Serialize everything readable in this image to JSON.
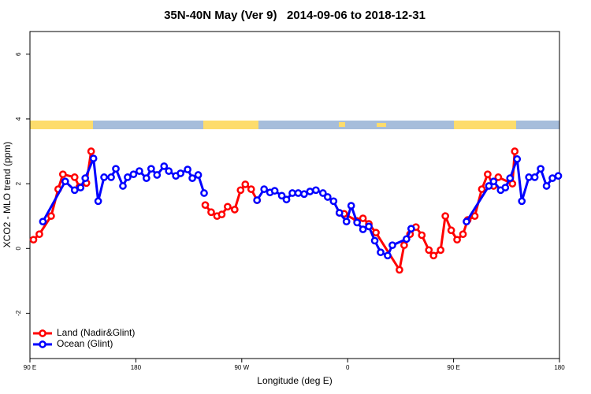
{
  "chart_data": {
    "type": "line",
    "title": "35N-40N May (Ver 9)   2014-09-06 to 2018-12-31",
    "x_label": "Longitude (deg E)",
    "y_label": "XCO2 - MLO trend (ppm)",
    "xlim": [
      90,
      540
    ],
    "xticks": [
      {
        "value": 90,
        "label": "90 E"
      },
      180,
      {
        "value": 270,
        "label": "90 W"
      },
      {
        "value": 360,
        "label": "0"
      },
      {
        "value": 450,
        "label": "90 E"
      },
      {
        "value": 540,
        "label": "180"
      }
    ],
    "ylim": [
      -3.4,
      6.7
    ],
    "yticks": [
      -2,
      0,
      2,
      4,
      6
    ],
    "legend": "bottom-left",
    "series": [
      {
        "name": "Land (Nadir&Glint)",
        "color": "#ff0000",
        "x": [
          93,
          98,
          108,
          114,
          118,
          128,
          132,
          138,
          142,
          null,
          239,
          244,
          249,
          253,
          258,
          264,
          269,
          273,
          278,
          283,
          null,
          353,
          357,
          368,
          373,
          378,
          384,
          404,
          408,
          413,
          418,
          423,
          429,
          433,
          439,
          443,
          448,
          453,
          458,
          462,
          468,
          474,
          479,
          484,
          488,
          500,
          502
        ],
        "values": [
          0.27,
          0.44,
          1.0,
          1.83,
          2.29,
          2.2,
          1.9,
          2.02,
          3.0,
          null,
          1.34,
          1.12,
          1.0,
          1.05,
          1.29,
          1.2,
          1.8,
          1.98,
          1.83,
          1.49,
          null,
          1.1,
          1.07,
          0.85,
          0.93,
          0.76,
          0.49,
          -0.66,
          0.1,
          0.44,
          0.66,
          0.41,
          -0.05,
          -0.22,
          -0.05,
          1.0,
          0.56,
          0.27,
          0.44,
          0.88,
          1.0,
          1.83,
          2.29,
          1.93,
          2.2,
          2.0,
          3.0
        ]
      },
      {
        "name": "Ocean (Glint)",
        "color": "#0000ff",
        "x": [
          101,
          120,
          128,
          133,
          137,
          144,
          148,
          153,
          159,
          163,
          169,
          173,
          178,
          183,
          189,
          193,
          198,
          204,
          208,
          214,
          218,
          224,
          228,
          233,
          238,
          null,
          283,
          289,
          294,
          298,
          304,
          308,
          313,
          318,
          323,
          328,
          333,
          339,
          343,
          348,
          353,
          359,
          363,
          368,
          373,
          378,
          383,
          388,
          394,
          398,
          410,
          414,
          null,
          461,
          480,
          484,
          490,
          494,
          498,
          504,
          508,
          514,
          519,
          524,
          529,
          534,
          539
        ],
        "values": [
          0.83,
          2.07,
          1.8,
          1.88,
          2.17,
          2.78,
          1.46,
          2.2,
          2.2,
          2.46,
          1.93,
          2.2,
          2.29,
          2.39,
          2.17,
          2.46,
          2.27,
          2.54,
          2.39,
          2.24,
          2.32,
          2.44,
          2.17,
          2.27,
          1.71,
          null,
          1.49,
          1.83,
          1.73,
          1.78,
          1.63,
          1.51,
          1.71,
          1.71,
          1.68,
          1.76,
          1.8,
          1.71,
          1.59,
          1.46,
          1.1,
          0.83,
          1.32,
          0.8,
          0.59,
          0.68,
          0.24,
          -0.12,
          -0.22,
          0.1,
          0.29,
          0.61,
          null,
          0.83,
          1.93,
          2.07,
          1.8,
          1.88,
          2.17,
          2.76,
          1.46,
          2.2,
          2.2,
          2.46,
          1.93,
          2.17,
          2.24
        ]
      }
    ]
  }
}
